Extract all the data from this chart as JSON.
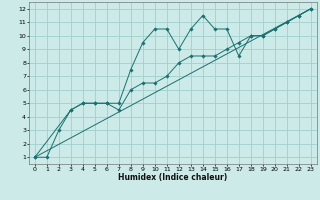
{
  "xlabel": "Humidex (Indice chaleur)",
  "xlim": [
    -0.5,
    23.5
  ],
  "ylim": [
    0.5,
    12.5
  ],
  "xticks": [
    0,
    1,
    2,
    3,
    4,
    5,
    6,
    7,
    8,
    9,
    10,
    11,
    12,
    13,
    14,
    15,
    16,
    17,
    18,
    19,
    20,
    21,
    22,
    23
  ],
  "yticks": [
    1,
    2,
    3,
    4,
    5,
    6,
    7,
    8,
    9,
    10,
    11,
    12
  ],
  "bg_color": "#cceae7",
  "line_color": "#1a7070",
  "grid_color": "#a0d0cc",
  "line1_x": [
    0,
    1,
    2,
    3,
    4,
    5,
    6,
    7,
    8,
    9,
    10,
    11,
    12,
    13,
    14,
    15,
    16,
    17,
    18,
    19,
    20,
    21,
    22,
    23
  ],
  "line1_y": [
    1,
    1,
    3,
    4.5,
    5,
    5,
    5,
    5,
    7.5,
    9.5,
    10.5,
    10.5,
    9,
    10.5,
    11.5,
    10.5,
    10.5,
    8.5,
    10,
    10,
    10.5,
    11,
    11.5,
    12
  ],
  "line2_x": [
    0,
    3,
    4,
    5,
    6,
    7,
    8,
    9,
    10,
    11,
    12,
    13,
    14,
    15,
    16,
    17,
    18,
    19,
    20,
    21,
    22,
    23
  ],
  "line2_y": [
    1,
    4.5,
    5,
    5,
    5,
    4.5,
    6,
    6.5,
    6.5,
    7,
    8,
    8.5,
    8.5,
    8.5,
    9,
    9.5,
    10,
    10,
    10.5,
    11,
    11.5,
    12
  ],
  "line3_x": [
    0,
    23
  ],
  "line3_y": [
    1,
    12
  ]
}
